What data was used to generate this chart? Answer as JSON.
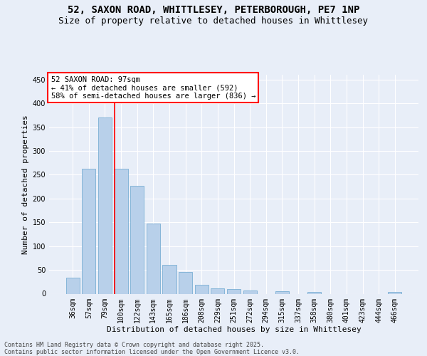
{
  "title_line1": "52, SAXON ROAD, WHITTLESEY, PETERBOROUGH, PE7 1NP",
  "title_line2": "Size of property relative to detached houses in Whittlesey",
  "xlabel": "Distribution of detached houses by size in Whittlesey",
  "ylabel": "Number of detached properties",
  "footer_line1": "Contains HM Land Registry data © Crown copyright and database right 2025.",
  "footer_line2": "Contains public sector information licensed under the Open Government Licence v3.0.",
  "categories": [
    "36sqm",
    "57sqm",
    "79sqm",
    "100sqm",
    "122sqm",
    "143sqm",
    "165sqm",
    "186sqm",
    "208sqm",
    "229sqm",
    "251sqm",
    "272sqm",
    "294sqm",
    "315sqm",
    "337sqm",
    "358sqm",
    "380sqm",
    "401sqm",
    "423sqm",
    "444sqm",
    "466sqm"
  ],
  "values": [
    33,
    262,
    370,
    262,
    227,
    148,
    60,
    45,
    18,
    11,
    10,
    6,
    0,
    5,
    0,
    3,
    0,
    0,
    0,
    0,
    3
  ],
  "bar_color": "#b8d0ea",
  "bar_edgecolor": "#7aafd4",
  "bg_color": "#e8eef8",
  "grid_color": "#ffffff",
  "vline_x": 2.62,
  "vline_color": "red",
  "annotation_text": "52 SAXON ROAD: 97sqm\n← 41% of detached houses are smaller (592)\n58% of semi-detached houses are larger (836) →",
  "ylim": [
    0,
    460
  ],
  "yticks": [
    0,
    50,
    100,
    150,
    200,
    250,
    300,
    350,
    400,
    450
  ],
  "title_fontsize": 10,
  "subtitle_fontsize": 9,
  "axis_label_fontsize": 8,
  "tick_fontsize": 7,
  "footer_fontsize": 6,
  "annot_fontsize": 7.5
}
